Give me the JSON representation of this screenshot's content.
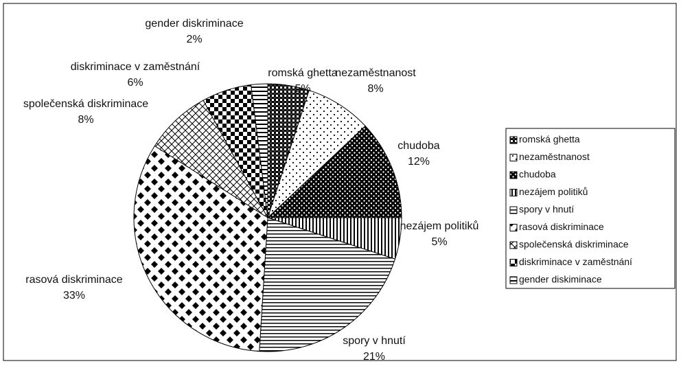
{
  "chart_data": {
    "type": "pie",
    "categories": [
      "romská ghetta",
      "nezaměstnanost",
      "chudoba",
      "nezájem politiků",
      "spory v hnutí",
      "rasová diskriminace",
      "společenská diskriminace",
      "diskriminace v zaměstnání",
      "gender diskriminace"
    ],
    "values": [
      5,
      8,
      12,
      5,
      21,
      33,
      8,
      6,
      2
    ],
    "value_labels": [
      "5%",
      "8%",
      "12%",
      "5%",
      "21%",
      "33%",
      "8%",
      "6%",
      "2%"
    ],
    "legend_labels": [
      "romská ghetta",
      "nezaměstnanost",
      "chudoba",
      "nezájem politiků",
      "spory v hnutí",
      "rasová diskriminace",
      "společenská diskriminace",
      "diskriminace v zaměstnání",
      "gender diskiminace"
    ],
    "legend": "right"
  }
}
